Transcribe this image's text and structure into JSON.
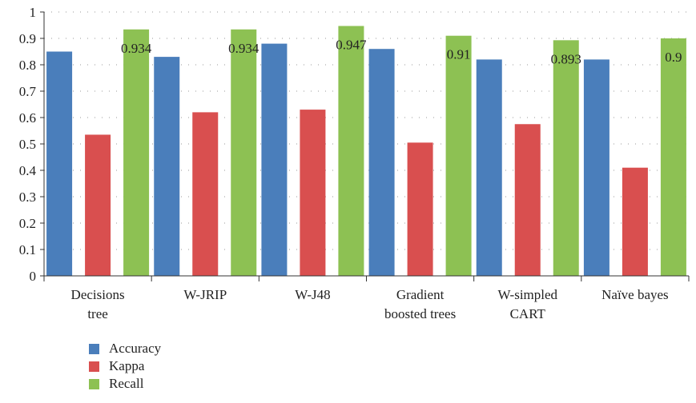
{
  "chart_data": {
    "type": "bar",
    "categories": [
      [
        "Decisions",
        "tree"
      ],
      [
        "W-JRIP"
      ],
      [
        "W-J48"
      ],
      [
        "Gradient",
        "boosted trees"
      ],
      [
        "W-simpled",
        "CART"
      ],
      [
        "Naïve bayes"
      ]
    ],
    "series": [
      {
        "name": "Accuracy",
        "color": "#4a7ebb",
        "values": [
          0.85,
          0.83,
          0.88,
          0.86,
          0.82,
          0.82
        ]
      },
      {
        "name": "Kappa",
        "color": "#d94f4f",
        "values": [
          0.535,
          0.62,
          0.63,
          0.505,
          0.575,
          0.41
        ]
      },
      {
        "name": "Recall",
        "color": "#8dc153",
        "values": [
          0.934,
          0.934,
          0.947,
          0.91,
          0.893,
          0.9
        ]
      }
    ],
    "data_labels": {
      "series": "Recall",
      "labels": [
        "0.934",
        "0.934",
        "0.947",
        "0.91",
        "0.893",
        "0.9"
      ]
    },
    "yticks": [
      "0",
      "0.1",
      "0.2",
      "0.3",
      "0.4",
      "0.5",
      "0.6",
      "0.7",
      "0.8",
      "0.9",
      "1"
    ],
    "ylim": [
      0,
      1
    ],
    "grid": "dotted-horizontal",
    "legend_position": "bottom-left",
    "title": "",
    "xlabel": "",
    "ylabel": ""
  }
}
